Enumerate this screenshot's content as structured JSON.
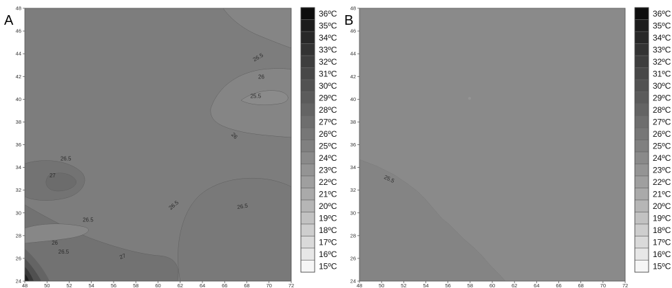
{
  "chart_data": [
    {
      "panel": "A",
      "type": "heatmap",
      "subtype": "filled-contour",
      "xlim": [
        48,
        72
      ],
      "ylim": [
        24,
        48
      ],
      "x_ticks": [
        48,
        50,
        52,
        54,
        56,
        58,
        60,
        62,
        64,
        66,
        68,
        70,
        72
      ],
      "y_ticks": [
        24,
        26,
        28,
        30,
        32,
        34,
        36,
        38,
        40,
        42,
        44,
        46,
        48
      ],
      "contour_labels": [
        {
          "text": "26.5",
          "x": 69.0,
          "y": 43.7,
          "angle": -30
        },
        {
          "text": "26",
          "x": 69.3,
          "y": 42.0,
          "angle": 0
        },
        {
          "text": "25.5",
          "x": 68.8,
          "y": 40.3,
          "angle": 0
        },
        {
          "text": "26",
          "x": 66.9,
          "y": 36.8,
          "angle": 45
        },
        {
          "text": "26.5",
          "x": 51.7,
          "y": 34.8,
          "angle": 0
        },
        {
          "text": "27",
          "x": 50.5,
          "y": 33.3,
          "angle": 0
        },
        {
          "text": "26.5",
          "x": 61.4,
          "y": 30.7,
          "angle": -40
        },
        {
          "text": "26.5",
          "x": 67.6,
          "y": 30.6,
          "angle": -10
        },
        {
          "text": "26.5",
          "x": 53.7,
          "y": 29.4,
          "angle": 0
        },
        {
          "text": "26",
          "x": 50.7,
          "y": 27.4,
          "angle": 0
        },
        {
          "text": "26.5",
          "x": 51.5,
          "y": 26.6,
          "angle": 0
        },
        {
          "text": "27",
          "x": 56.8,
          "y": 26.2,
          "angle": -20
        }
      ]
    },
    {
      "panel": "B",
      "type": "heatmap",
      "subtype": "filled-contour",
      "xlim": [
        48,
        72
      ],
      "ylim": [
        24,
        48
      ],
      "x_ticks": [
        48,
        50,
        52,
        54,
        56,
        58,
        60,
        62,
        64,
        66,
        68,
        70,
        72
      ],
      "y_ticks": [
        24,
        26,
        28,
        30,
        32,
        34,
        36,
        38,
        40,
        42,
        44,
        46,
        48
      ],
      "contour_labels": [
        {
          "text": "25.5",
          "x": 50.7,
          "y": 33.0,
          "angle": 25
        }
      ]
    }
  ],
  "panel_letters": [
    "A",
    "B"
  ],
  "legend": {
    "labels": [
      "36ºC",
      "35ºC",
      "34ºC",
      "33ºC",
      "32ºC",
      "31ºC",
      "30ºC",
      "29ºC",
      "28ºC",
      "27ºC",
      "26ºC",
      "25ºC",
      "24ºC",
      "23ºC",
      "22ºC",
      "21ºC",
      "20ºC",
      "19ºC",
      "18ºC",
      "17ºC",
      "16ºC",
      "15ºC"
    ],
    "colors": [
      "#0e0e0e",
      "#1c1c1c",
      "#282828",
      "#333333",
      "#3e3e3e",
      "#484848",
      "#525252",
      "#5b5b5b",
      "#646464",
      "#6e6e6e",
      "#777777",
      "#808080",
      "#8a8a8a",
      "#949494",
      "#9f9f9f",
      "#aaaaaa",
      "#b6b6b6",
      "#c2c2c2",
      "#cecece",
      "#dadada",
      "#e7e7e7",
      "#f6f6f6"
    ]
  },
  "colors": {
    "panel_a_base": "#7d7d7d",
    "panel_a_light": "#8a8a8a",
    "panel_a_dark": "#717171",
    "panel_b_base": "#8a8a8a",
    "panel_b_lower": "#838383",
    "contour_line": "#5e5e5e"
  }
}
